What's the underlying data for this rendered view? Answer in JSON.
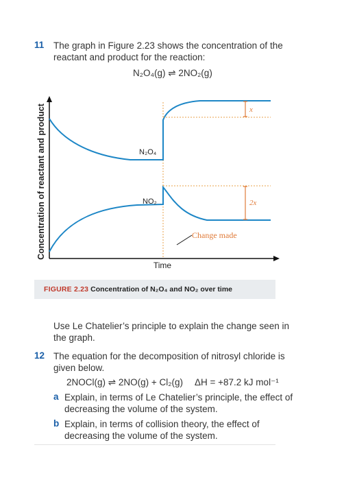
{
  "q11": {
    "number": "11",
    "line1": "The graph in Figure 2.23 shows the concentration of the",
    "line2": "reactant and product for the reaction:",
    "equation": "N₂O₄(g) ⇌ 2NO₂(g)",
    "followup_line1": "Use Le Chatelier’s principle to explain the change seen in",
    "followup_line2": "the graph."
  },
  "figure": {
    "y_axis_label": "Concentration of reactant and product",
    "x_axis_label": "Time",
    "n2o4_label": "N₂O₄",
    "no2_label": "NO₂",
    "x_marker": "x",
    "two_x_marker": "2x",
    "change_label": "Change made",
    "caption_label": "FIGURE 2.23",
    "caption_text": "Concentration of N₂O₄ and NO₂ over time",
    "colors": {
      "curve": "#1c86c6",
      "dashed": "#e8a24a",
      "annotation": "#e07b39",
      "change_label": "#e07b39"
    }
  },
  "q12": {
    "number": "12",
    "line1": "The equation for the decomposition of nitrosyl chloride is",
    "line2": "given below.",
    "equation": "2NOCl(g) ⇌ 2NO(g) + Cl₂(g)",
    "enthalpy": "ΔH = +87.2 kJ mol⁻¹",
    "part_a_letter": "a",
    "part_a_line1": "Explain, in terms of Le Chatelier’s principle, the effect of",
    "part_a_line2": "decreasing the volume of the system.",
    "part_b_letter": "b",
    "part_b_line1": "Explain, in terms of collision theory, the effect of",
    "part_b_line2": "decreasing the volume of the system."
  }
}
